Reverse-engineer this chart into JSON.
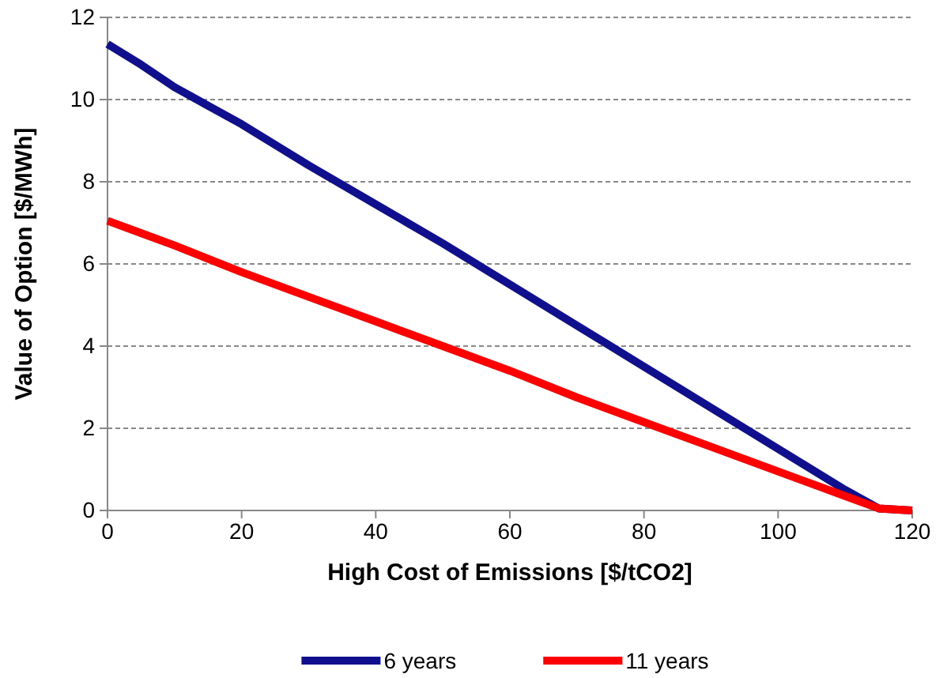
{
  "chart_data": {
    "type": "line",
    "xlabel": "High Cost of Emissions [$/tCO2]",
    "ylabel": "Value of Option [$/MWh]",
    "x": [
      0,
      5,
      10,
      20,
      30,
      40,
      50,
      60,
      70,
      80,
      90,
      100,
      110,
      115,
      120
    ],
    "series": [
      {
        "name": "6 years",
        "color": "#10108f",
        "values": [
          11.35,
          10.85,
          10.3,
          9.4,
          8.4,
          7.45,
          6.5,
          5.5,
          4.5,
          3.5,
          2.5,
          1.5,
          0.5,
          0.05,
          0
        ]
      },
      {
        "name": "11 years",
        "color": "#ff0000",
        "values": [
          7.05,
          6.75,
          6.45,
          5.8,
          5.2,
          4.6,
          4.0,
          3.4,
          2.75,
          2.15,
          1.55,
          0.95,
          0.35,
          0.05,
          0
        ]
      }
    ],
    "xlim": [
      0,
      120
    ],
    "xticks": [
      0,
      20,
      40,
      60,
      80,
      100,
      120
    ],
    "ylim": [
      0,
      12
    ],
    "yticks": [
      0,
      2,
      4,
      6,
      8,
      10,
      12
    ],
    "grid": "y",
    "legend": "bottom",
    "marker": "none",
    "line_style": "solid"
  }
}
